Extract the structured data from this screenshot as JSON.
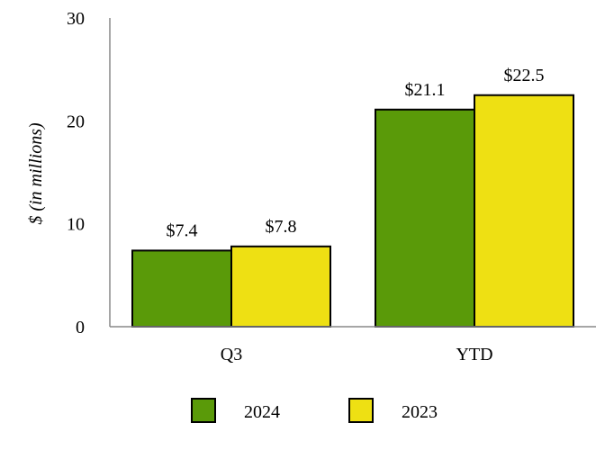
{
  "chart_data": {
    "type": "bar",
    "title": "",
    "xlabel": "",
    "ylabel": "$ (in millions)",
    "ylim": [
      0,
      30
    ],
    "yticks": [
      0,
      10,
      20,
      30
    ],
    "grid": false,
    "legend_position": "bottom",
    "categories": [
      "Q3",
      "YTD"
    ],
    "series": [
      {
        "name": "2024",
        "color": "#5a9a09",
        "values": [
          7.4,
          21.1
        ],
        "labels": [
          "$7.4",
          "$21.1"
        ]
      },
      {
        "name": "2023",
        "color": "#eee013",
        "values": [
          7.8,
          22.5
        ],
        "labels": [
          "$7.8",
          "$22.5"
        ]
      }
    ]
  }
}
